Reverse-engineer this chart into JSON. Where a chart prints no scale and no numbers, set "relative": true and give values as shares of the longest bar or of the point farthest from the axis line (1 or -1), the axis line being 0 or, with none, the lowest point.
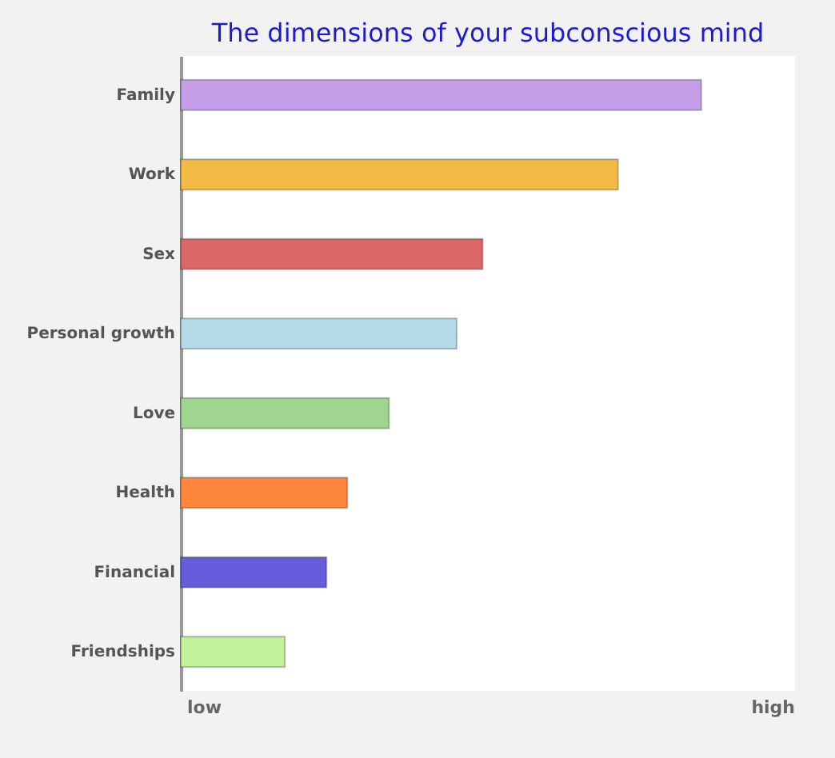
{
  "chart_data": {
    "type": "bar",
    "orientation": "horizontal",
    "title": "The dimensions of your subconscious mind",
    "categories": [
      "Family",
      "Work",
      "Sex",
      "Personal growth",
      "Love",
      "Health",
      "Financial",
      "Friendships"
    ],
    "values": [
      1,
      0.84,
      0.58,
      0.53,
      0.4,
      0.32,
      0.28,
      0.2
    ],
    "colors": [
      "#c59ee8",
      "#f3bb45",
      "#db6866",
      "#b5d9e7",
      "#9fd491",
      "#ff873d",
      "#665cdc",
      "#c0f29c"
    ],
    "relative": true,
    "annotations": [
      "low",
      "high"
    ]
  }
}
